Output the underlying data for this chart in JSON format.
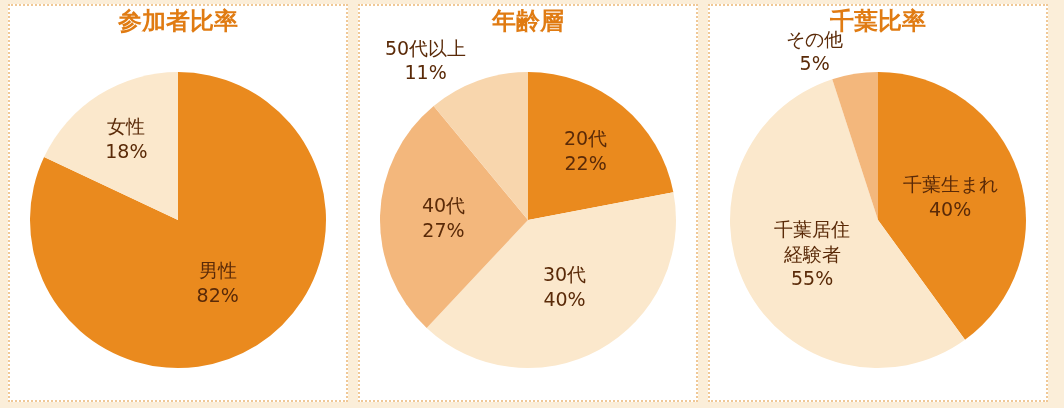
{
  "chart_data": [
    {
      "type": "pie",
      "title": "参加者比率",
      "categories": [
        "男性",
        "女性"
      ],
      "values": [
        82,
        18
      ],
      "value_labels": [
        "82%",
        "18%"
      ],
      "colors": [
        "#ea8a1e",
        "#fbe8cc"
      ]
    },
    {
      "type": "pie",
      "title": "年齢層",
      "categories": [
        "20代",
        "30代",
        "40代",
        "50代以上"
      ],
      "values": [
        22,
        40,
        27,
        11
      ],
      "value_labels": [
        "22%",
        "40%",
        "27%",
        "11%"
      ],
      "colors": [
        "#ea8a1e",
        "#fbe8cc",
        "#f3b77c",
        "#f8d6ad"
      ]
    },
    {
      "type": "pie",
      "title": "千葉比率",
      "categories": [
        "千葉生まれ",
        "千葉居住経験者",
        "その他"
      ],
      "values": [
        40,
        55,
        5
      ],
      "value_labels": [
        "40%",
        "55%",
        "5%"
      ],
      "colors": [
        "#ea8a1e",
        "#fbe8cc",
        "#f3b77c"
      ]
    }
  ]
}
